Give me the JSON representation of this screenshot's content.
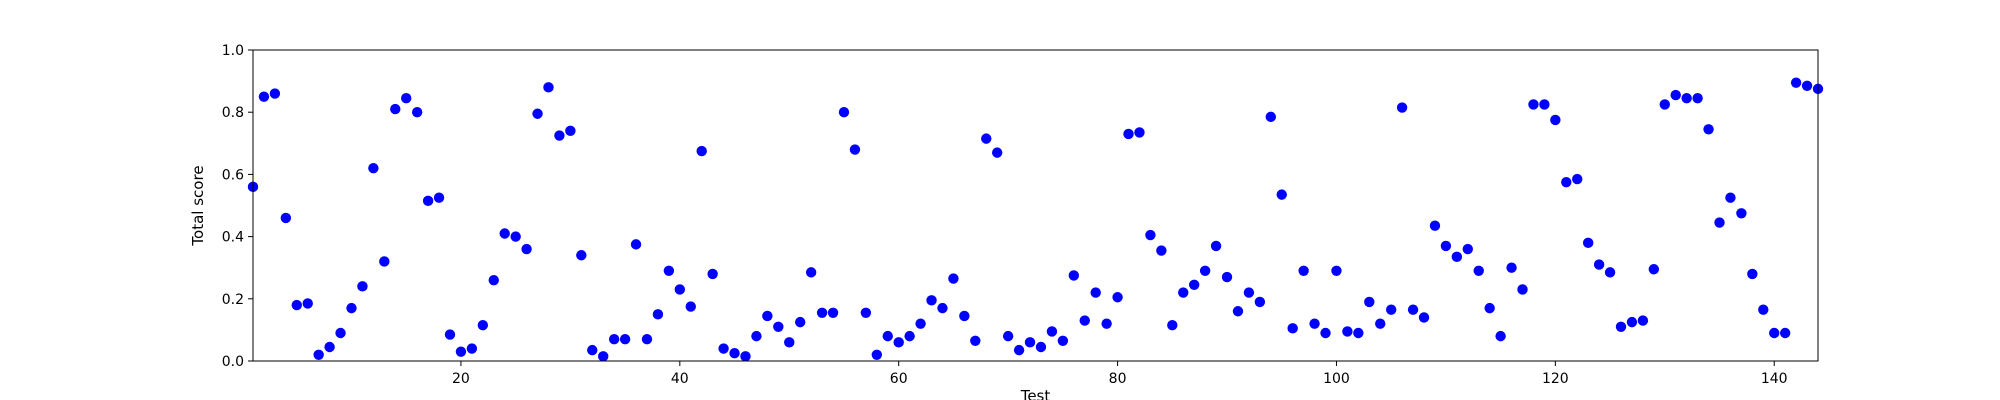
{
  "chart_data": {
    "type": "scatter",
    "xlabel": "Test",
    "ylabel": "Total score",
    "xlim": [
      1,
      144
    ],
    "ylim": [
      0.0,
      1.0
    ],
    "x_ticks": [
      20,
      40,
      60,
      80,
      100,
      120,
      140
    ],
    "y_ticks": [
      0.0,
      0.2,
      0.4,
      0.6,
      0.8,
      1.0
    ],
    "y_tick_labels": [
      "0.0",
      "0.2",
      "0.4",
      "0.6",
      "0.8",
      "1.0"
    ],
    "grid": false,
    "marker_color": "#0000ff",
    "series": [
      {
        "x": [
          1,
          2,
          3,
          4,
          5,
          6,
          7,
          8,
          9,
          10,
          11,
          12,
          13,
          14,
          15,
          16,
          17,
          18,
          19,
          20,
          21,
          22,
          23,
          24,
          25,
          26,
          27,
          28,
          29,
          30,
          31,
          32,
          33,
          34,
          35,
          36,
          37,
          38,
          39,
          40,
          41,
          42,
          43,
          44,
          45,
          46,
          47,
          48,
          49,
          50,
          51,
          52,
          53,
          54,
          55,
          56,
          57,
          58,
          59,
          60,
          61,
          62,
          63,
          64,
          65,
          66,
          67,
          68,
          69,
          70,
          71,
          72,
          73,
          74,
          75,
          76,
          77,
          78,
          79,
          80,
          81,
          82,
          83,
          84,
          85,
          86,
          87,
          88,
          89,
          90,
          91,
          92,
          93,
          94,
          95,
          96,
          97,
          98,
          99,
          100,
          101,
          102,
          103,
          104,
          105,
          106,
          107,
          108,
          109,
          110,
          111,
          112,
          113,
          114,
          115,
          116,
          117,
          118,
          119,
          120,
          121,
          122,
          123,
          124,
          125,
          126,
          127,
          128,
          129,
          130,
          131,
          132,
          133,
          134,
          135,
          136,
          137,
          138,
          139,
          140,
          141,
          142,
          143,
          144
        ],
        "y": [
          0.56,
          0.85,
          0.86,
          0.46,
          0.18,
          0.185,
          0.02,
          0.045,
          0.09,
          0.17,
          0.24,
          0.62,
          0.32,
          0.81,
          0.845,
          0.8,
          0.515,
          0.525,
          0.085,
          0.03,
          0.04,
          0.115,
          0.26,
          0.41,
          0.4,
          0.36,
          0.795,
          0.88,
          0.725,
          0.74,
          0.34,
          0.035,
          0.015,
          0.07,
          0.07,
          0.375,
          0.07,
          0.15,
          0.29,
          0.23,
          0.175,
          0.675,
          0.28,
          0.04,
          0.025,
          0.015,
          0.08,
          0.145,
          0.11,
          0.06,
          0.125,
          0.285,
          0.155,
          0.155,
          0.8,
          0.68,
          0.155,
          0.02,
          0.08,
          0.06,
          0.08,
          0.12,
          0.195,
          0.17,
          0.265,
          0.145,
          0.065,
          0.715,
          0.67,
          0.08,
          0.035,
          0.06,
          0.045,
          0.095,
          0.065,
          0.275,
          0.13,
          0.22,
          0.12,
          0.205,
          0.73,
          0.735,
          0.405,
          0.355,
          0.115,
          0.22,
          0.245,
          0.29,
          0.37,
          0.27,
          0.16,
          0.22,
          0.19,
          0.785,
          0.535,
          0.105,
          0.29,
          0.12,
          0.09,
          0.29,
          0.095,
          0.09,
          0.19,
          0.12,
          0.165,
          0.815,
          0.165,
          0.14,
          0.435,
          0.37,
          0.335,
          0.36,
          0.29,
          0.17,
          0.08,
          0.3,
          0.23,
          0.825,
          0.825,
          0.775,
          0.575,
          0.585,
          0.38,
          0.31,
          0.285,
          0.11,
          0.125,
          0.13,
          0.295,
          0.825,
          0.855,
          0.845,
          0.845,
          0.745,
          0.445,
          0.525,
          0.475,
          0.28,
          0.165,
          0.09,
          0.09,
          0.895,
          0.885,
          0.875
        ]
      }
    ]
  }
}
